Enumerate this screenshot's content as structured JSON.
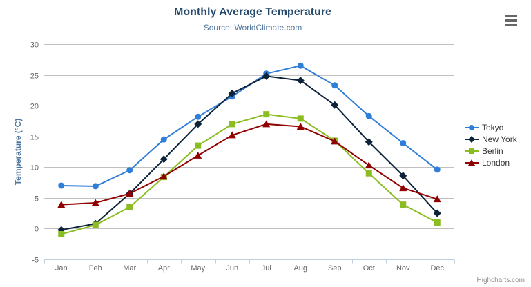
{
  "chart_data": {
    "type": "line",
    "title": "Monthly Average Temperature",
    "subtitle": "Source: WorldClimate.com",
    "credits": "Highcharts.com",
    "xlabel": "",
    "ylabel": "Temperature (°C)",
    "categories": [
      "Jan",
      "Feb",
      "Mar",
      "Apr",
      "May",
      "Jun",
      "Jul",
      "Aug",
      "Sep",
      "Oct",
      "Nov",
      "Dec"
    ],
    "ylim": [
      -5,
      30
    ],
    "ytick_step": 5,
    "grid": "horizontal",
    "legend_position": "right",
    "series": [
      {
        "name": "Tokyo",
        "color": "#2f7ed8",
        "marker": "circle",
        "values": [
          7.0,
          6.9,
          9.5,
          14.5,
          18.2,
          21.5,
          25.2,
          26.5,
          23.3,
          18.3,
          13.9,
          9.6
        ]
      },
      {
        "name": "New York",
        "color": "#0d233a",
        "marker": "diamond",
        "values": [
          -0.2,
          0.8,
          5.7,
          11.3,
          17.0,
          22.0,
          24.8,
          24.1,
          20.1,
          14.1,
          8.6,
          2.5
        ]
      },
      {
        "name": "Berlin",
        "color": "#8bbc21",
        "marker": "square",
        "values": [
          -0.9,
          0.6,
          3.5,
          8.4,
          13.5,
          17.0,
          18.6,
          17.9,
          14.3,
          9.0,
          3.9,
          1.0
        ]
      },
      {
        "name": "London",
        "color": "#910000",
        "marker": "triangle",
        "values": [
          3.9,
          4.2,
          5.7,
          8.5,
          11.9,
          15.2,
          17.0,
          16.6,
          14.2,
          10.3,
          6.6,
          4.8
        ]
      }
    ],
    "colors": {
      "grid": "#c0c0c0",
      "axis_line": "#c0d0e0",
      "tick_label": "#666666",
      "axis_title": "#4d759e",
      "title": "#274b6d",
      "subtitle": "#4d759e",
      "legend_text": "#333333",
      "credits_text": "#909090"
    },
    "icons": {
      "context_menu": "hamburger-icon"
    }
  }
}
